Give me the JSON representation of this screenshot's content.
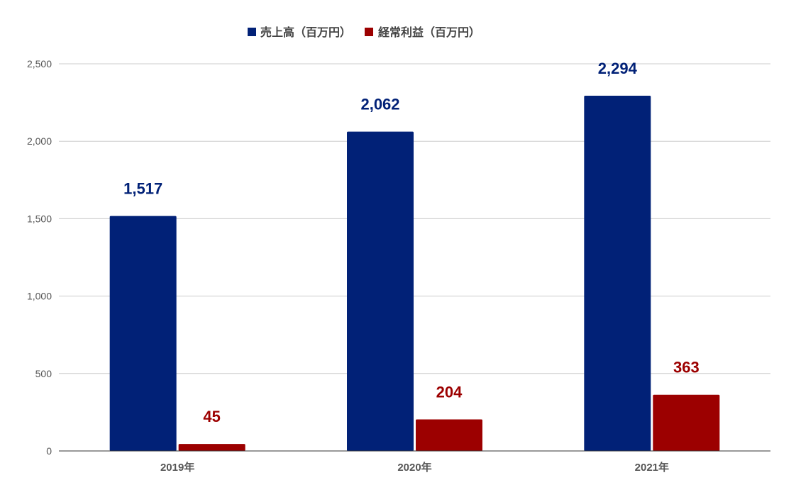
{
  "chart_data": {
    "type": "bar",
    "title": "",
    "xlabel": "",
    "ylabel": "",
    "categories": [
      "2019年",
      "2020年",
      "2021年"
    ],
    "series": [
      {
        "name": "売上高（百万円）",
        "values": [
          1517,
          2062,
          2294
        ],
        "color": "#012177",
        "labels": [
          "1,517",
          "2,062",
          "2,294"
        ]
      },
      {
        "name": "経常利益（百万円）",
        "values": [
          45,
          204,
          363
        ],
        "color": "#9c0000",
        "labels": [
          "45",
          "204",
          "363"
        ]
      }
    ],
    "ylim": [
      0,
      2500
    ],
    "yticks": [
      0,
      500,
      1000,
      1500,
      2000,
      2500
    ],
    "ytick_labels": [
      "0",
      "500",
      "1,000",
      "1,500",
      "2,000",
      "2,500"
    ],
    "grid": true,
    "legend": "top-center"
  }
}
